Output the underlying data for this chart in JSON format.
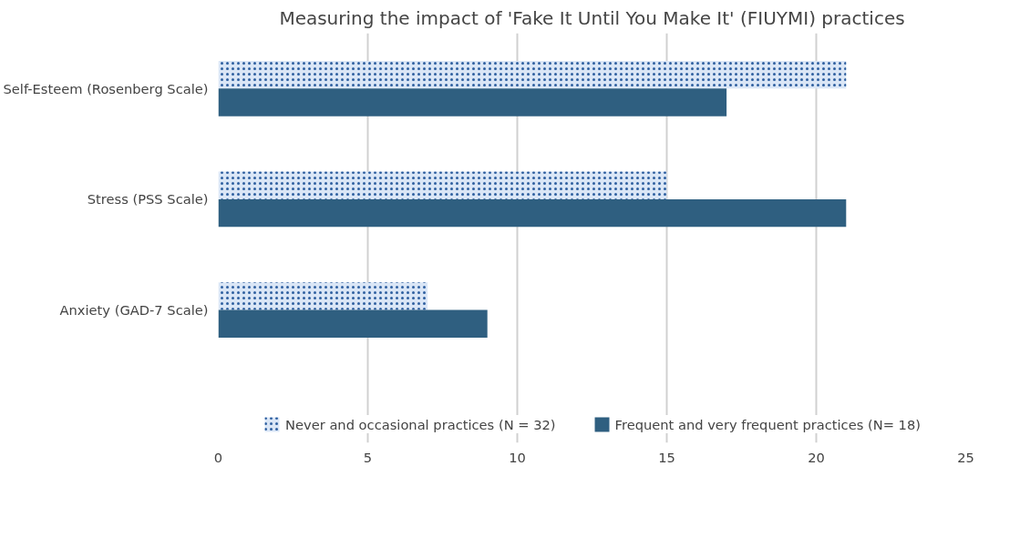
{
  "chart_data": {
    "type": "bar",
    "orientation": "horizontal",
    "title": "Measuring the impact of 'Fake It Until You Make It' (FIUYMI) practices",
    "categories": [
      "Self-Esteem (Rosenberg Scale)",
      "Stress (PSS Scale)",
      "Anxiety (GAD-7 Scale)"
    ],
    "series": [
      {
        "name": "Never and occasional practices (N = 32)",
        "color": "#dae6f6",
        "values": [
          21,
          15,
          7
        ]
      },
      {
        "name": "Frequent and very frequent practices (N= 18)",
        "color": "#2f5f80",
        "values": [
          17,
          21,
          9
        ]
      }
    ],
    "xlim": [
      0,
      25
    ],
    "xticks": [
      0,
      5,
      10,
      15,
      20,
      25
    ],
    "grid": "x",
    "legend": "bottom"
  }
}
